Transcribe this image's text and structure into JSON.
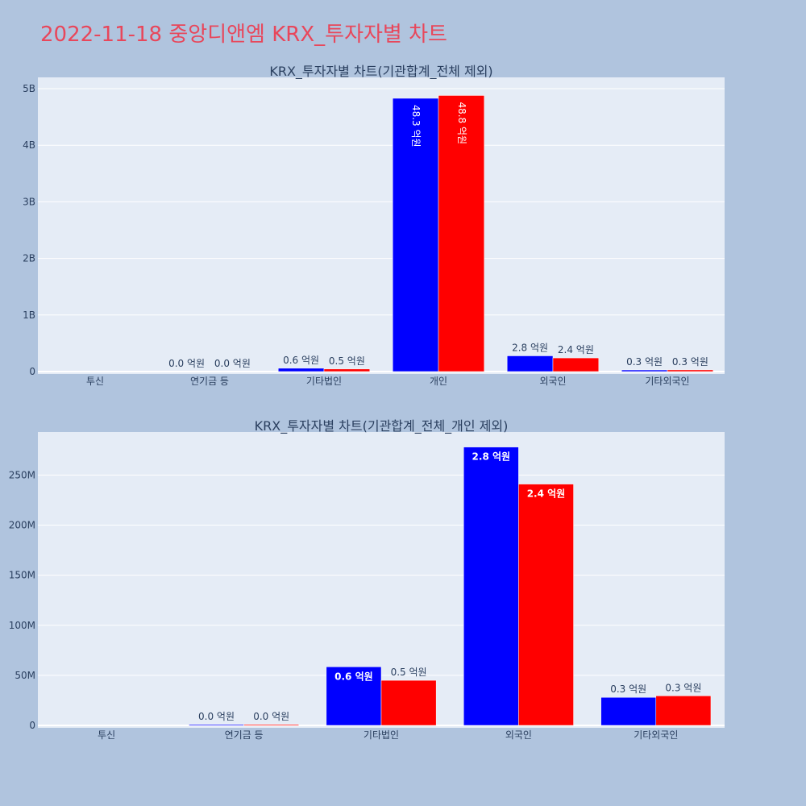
{
  "page_title": "2022-11-18 중앙디앤엠 KRX_투자자별 차트",
  "colors": {
    "buy": "#0000ff",
    "sell": "#ff0000",
    "plot_bg": "#e5ecf6",
    "page_bg": "#b0c4de",
    "title": "#e8475b"
  },
  "chart_data": [
    {
      "type": "bar",
      "title": "KRX_투자자별 차트(기관합계_전체 제외)",
      "categories": [
        "투신",
        "연기금 등",
        "기타법인",
        "개인",
        "외국인",
        "기타외국인"
      ],
      "series": [
        {
          "values": [
            0,
            1000000,
            58500000,
            4830000000,
            278000000,
            28000000
          ],
          "labels": [
            "",
            "0.0 억원",
            "0.6 억원",
            "48.3 억원",
            "2.8 억원",
            "0.3 억원"
          ]
        },
        {
          "values": [
            0,
            1000000,
            45000000,
            4880000000,
            241000000,
            29500000
          ],
          "labels": [
            "",
            "0.0 억원",
            "0.5 억원",
            "48.8 억원",
            "2.4 억원",
            "0.3 억원"
          ]
        }
      ],
      "yticks": [
        "0",
        "1B",
        "2B",
        "3B",
        "4B",
        "5B"
      ],
      "ytick_values": [
        0,
        1000000000,
        2000000000,
        3000000000,
        4000000000,
        5000000000
      ],
      "ylim": [
        0,
        5200000000
      ],
      "grid": true
    },
    {
      "type": "bar",
      "title": "KRX_투자자별 차트(기관합계_전체_개인 제외)",
      "categories": [
        "투신",
        "연기금 등",
        "기타법인",
        "외국인",
        "기타외국인"
      ],
      "series": [
        {
          "values": [
            0,
            1000000,
            58500000,
            278000000,
            28000000
          ],
          "labels": [
            "",
            "0.0 억원",
            "0.6 억원",
            "2.8 억원",
            "0.3 억원"
          ]
        },
        {
          "values": [
            0,
            1000000,
            45000000,
            241000000,
            29500000
          ],
          "labels": [
            "",
            "0.0 억원",
            "0.5 억원",
            "2.4 억원",
            "0.3 억원"
          ]
        }
      ],
      "yticks": [
        "0",
        "50M",
        "100M",
        "150M",
        "200M",
        "250M"
      ],
      "ytick_values": [
        0,
        50000000,
        100000000,
        150000000,
        200000000,
        250000000
      ],
      "ylim": [
        0,
        293000000
      ],
      "grid": true
    }
  ]
}
